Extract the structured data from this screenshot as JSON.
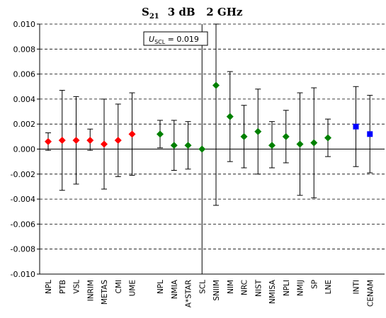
{
  "chart_data": {
    "type": "scatter",
    "title": "S",
    "title_subscript": "21",
    "title_rest": "3 dB   2 GHz",
    "xlabel": "",
    "ylabel": "",
    "ylim": [
      -0.01,
      0.01
    ],
    "y_ticks": [
      -0.01,
      -0.008,
      -0.006,
      -0.004,
      -0.002,
      0.0,
      0.002,
      0.004,
      0.006,
      0.008,
      0.01
    ],
    "y_tick_labels": [
      "-0.010",
      "-0.008",
      "-0.006",
      "-0.004",
      "-0.002",
      "0.000",
      "0.002",
      "0.004",
      "0.006",
      "0.008",
      "0.010"
    ],
    "grid": "horizontal dashed",
    "reference_label": "SCL",
    "annotation": {
      "prefix": "U",
      "subscript": "SCL",
      "text": " = 0.019"
    },
    "colors": {
      "red": "#ff0000",
      "green": "#008000",
      "blue": "#0000ff"
    },
    "points": [
      {
        "label": "NPL",
        "slot": 0,
        "value": 0.0006,
        "lower": -0.0001,
        "upper": 0.0013,
        "color": "red",
        "marker": "diamond"
      },
      {
        "label": "PTB",
        "slot": 1,
        "value": 0.0007,
        "lower": -0.0033,
        "upper": 0.0047,
        "color": "red",
        "marker": "diamond"
      },
      {
        "label": "VSL",
        "slot": 2,
        "value": 0.0007,
        "lower": -0.0028,
        "upper": 0.0042,
        "color": "red",
        "marker": "diamond"
      },
      {
        "label": "INRIM",
        "slot": 3,
        "value": 0.0007,
        "lower": -0.0001,
        "upper": 0.0016,
        "color": "red",
        "marker": "diamond"
      },
      {
        "label": "METAS",
        "slot": 4,
        "value": 0.0004,
        "lower": -0.0032,
        "upper": 0.004,
        "color": "red",
        "marker": "diamond"
      },
      {
        "label": "CMI",
        "slot": 5,
        "value": 0.0007,
        "lower": -0.0022,
        "upper": 0.0036,
        "color": "red",
        "marker": "diamond"
      },
      {
        "label": "UME",
        "slot": 6,
        "value": 0.0012,
        "lower": -0.0021,
        "upper": 0.0045,
        "color": "red",
        "marker": "diamond"
      },
      {
        "label": "NPL",
        "slot": 8,
        "value": 0.0012,
        "lower": 0.0001,
        "upper": 0.0023,
        "color": "green",
        "marker": "diamond"
      },
      {
        "label": "NMIA",
        "slot": 9,
        "value": 0.0003,
        "lower": -0.0017,
        "upper": 0.0023,
        "color": "green",
        "marker": "diamond"
      },
      {
        "label": "A*STAR",
        "slot": 10,
        "value": 0.0003,
        "lower": -0.0016,
        "upper": 0.0022,
        "color": "green",
        "marker": "diamond"
      },
      {
        "label": "SCL",
        "slot": 11,
        "value": 0.0,
        "lower": -0.01,
        "upper": 0.01,
        "color": "green",
        "marker": "diamond"
      },
      {
        "label": "SNIIM",
        "slot": 12,
        "value": 0.0051,
        "lower": -0.0045,
        "upper": 0.01,
        "color": "green",
        "marker": "diamond"
      },
      {
        "label": "NIM",
        "slot": 13,
        "value": 0.0026,
        "lower": -0.001,
        "upper": 0.0062,
        "color": "green",
        "marker": "diamond"
      },
      {
        "label": "NRC",
        "slot": 14,
        "value": 0.001,
        "lower": -0.0015,
        "upper": 0.0035,
        "color": "green",
        "marker": "diamond"
      },
      {
        "label": "NIST",
        "slot": 15,
        "value": 0.0014,
        "lower": -0.002,
        "upper": 0.0048,
        "color": "green",
        "marker": "diamond"
      },
      {
        "label": "NMISA",
        "slot": 16,
        "value": 0.0003,
        "lower": -0.0015,
        "upper": 0.0022,
        "color": "green",
        "marker": "diamond"
      },
      {
        "label": "NPLI",
        "slot": 17,
        "value": 0.001,
        "lower": -0.0011,
        "upper": 0.0031,
        "color": "green",
        "marker": "diamond"
      },
      {
        "label": "NMIJ",
        "slot": 18,
        "value": 0.0004,
        "lower": -0.0037,
        "upper": 0.0045,
        "color": "green",
        "marker": "diamond"
      },
      {
        "label": "SP",
        "slot": 19,
        "value": 0.0005,
        "lower": -0.0039,
        "upper": 0.0049,
        "color": "green",
        "marker": "diamond"
      },
      {
        "label": "LNE",
        "slot": 20,
        "value": 0.0009,
        "lower": -0.0006,
        "upper": 0.0024,
        "color": "green",
        "marker": "diamond"
      },
      {
        "label": "INTI",
        "slot": 22,
        "value": 0.0018,
        "lower": -0.0014,
        "upper": 0.005,
        "color": "blue",
        "marker": "square"
      },
      {
        "label": "CENAM",
        "slot": 23,
        "value": 0.0012,
        "lower": -0.0019,
        "upper": 0.0043,
        "color": "blue",
        "marker": "square"
      }
    ]
  }
}
